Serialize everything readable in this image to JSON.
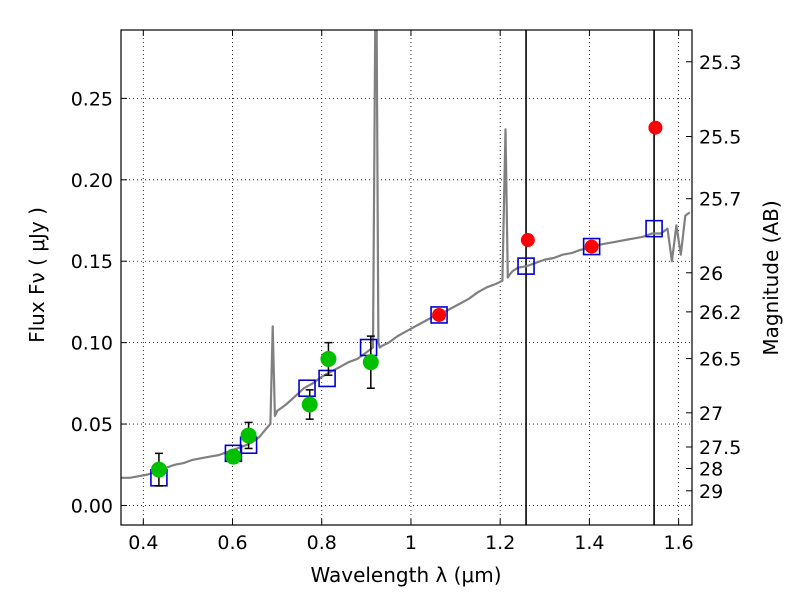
{
  "chart_data": {
    "type": "scatter",
    "xlabel": "Wavelength  λ (μm)",
    "ylabel": "Flux  Fν  ( μJy )",
    "ylabel_right": "Magnitude (AB)",
    "xlim": [
      0.35,
      1.63
    ],
    "ylim": [
      -0.012,
      0.292
    ],
    "grid": true,
    "x_ticks": [
      0.4,
      0.6,
      0.8,
      1.0,
      1.2,
      1.4,
      1.6
    ],
    "x_tick_labels": [
      "0.4",
      "0.6",
      "0.8",
      "1",
      "1.2",
      "1.4",
      "1.6"
    ],
    "y_ticks": [
      0.0,
      0.05,
      0.1,
      0.15,
      0.2,
      0.25
    ],
    "y_tick_labels": [
      "0.00",
      "0.05",
      "0.10",
      "0.15",
      "0.20",
      "0.25"
    ],
    "right_ticks": [
      {
        "label": "25.3",
        "flux": 0.2725
      },
      {
        "label": "25.5",
        "flux": 0.2266
      },
      {
        "label": "25.7",
        "flux": 0.1884
      },
      {
        "label": "26",
        "flux": 0.1429
      },
      {
        "label": "26.2",
        "flux": 0.1189
      },
      {
        "label": "26.5",
        "flux": 0.0902
      },
      {
        "label": "27",
        "flux": 0.0569
      },
      {
        "label": "27.5",
        "flux": 0.0359
      },
      {
        "label": "28",
        "flux": 0.0227
      },
      {
        "label": "29",
        "flux": 0.009
      }
    ],
    "vertical_lines": [
      1.258,
      1.545
    ],
    "series": [
      {
        "kind": "line",
        "color": "#808080",
        "x": [
          0.35,
          0.37,
          0.39,
          0.41,
          0.43,
          0.45,
          0.47,
          0.49,
          0.51,
          0.53,
          0.55,
          0.57,
          0.59,
          0.61,
          0.63,
          0.645,
          0.66,
          0.675,
          0.685,
          0.69,
          0.695,
          0.7,
          0.72,
          0.74,
          0.76,
          0.78,
          0.8,
          0.82,
          0.84,
          0.86,
          0.88,
          0.9,
          0.915,
          0.92,
          0.923,
          0.927,
          0.93,
          0.935,
          0.95,
          0.97,
          0.99,
          1.01,
          1.03,
          1.05,
          1.07,
          1.09,
          1.11,
          1.13,
          1.15,
          1.17,
          1.19,
          1.205,
          1.212,
          1.217,
          1.222,
          1.228,
          1.24,
          1.26,
          1.28,
          1.3,
          1.32,
          1.34,
          1.36,
          1.38,
          1.4,
          1.42,
          1.44,
          1.46,
          1.48,
          1.5,
          1.52,
          1.54,
          1.56,
          1.575,
          1.585,
          1.595,
          1.605,
          1.615,
          1.625
        ],
        "y": [
          0.017,
          0.017,
          0.018,
          0.019,
          0.021,
          0.023,
          0.025,
          0.026,
          0.028,
          0.029,
          0.03,
          0.031,
          0.033,
          0.035,
          0.037,
          0.039,
          0.042,
          0.047,
          0.05,
          0.11,
          0.055,
          0.058,
          0.062,
          0.067,
          0.072,
          0.075,
          0.079,
          0.082,
          0.085,
          0.088,
          0.09,
          0.094,
          0.097,
          0.3,
          0.3,
          0.1,
          0.097,
          0.098,
          0.1,
          0.104,
          0.107,
          0.11,
          0.113,
          0.116,
          0.118,
          0.121,
          0.124,
          0.127,
          0.131,
          0.134,
          0.136,
          0.138,
          0.231,
          0.14,
          0.142,
          0.144,
          0.146,
          0.147,
          0.149,
          0.151,
          0.152,
          0.154,
          0.155,
          0.157,
          0.158,
          0.16,
          0.161,
          0.162,
          0.163,
          0.164,
          0.165,
          0.167,
          0.167,
          0.17,
          0.15,
          0.172,
          0.154,
          0.178,
          0.18
        ]
      },
      {
        "kind": "errorbar",
        "color": "#00c000",
        "x": [
          0.435,
          0.602,
          0.636,
          0.773,
          0.815,
          0.91
        ],
        "y": [
          0.022,
          0.03,
          0.043,
          0.062,
          0.09,
          0.088
        ],
        "yerr": [
          0.01,
          0.004,
          0.008,
          0.009,
          0.01,
          0.016
        ]
      },
      {
        "kind": "points",
        "color": "#ff0000",
        "x": [
          1.063,
          1.262,
          1.405,
          1.548
        ],
        "y": [
          0.117,
          0.163,
          0.159,
          0.232
        ]
      },
      {
        "kind": "squares",
        "color": "#0000cc",
        "x": [
          0.435,
          0.602,
          0.636,
          0.767,
          0.812,
          0.905,
          1.063,
          1.258,
          1.405,
          1.545
        ],
        "y": [
          0.017,
          0.032,
          0.037,
          0.072,
          0.078,
          0.097,
          0.117,
          0.147,
          0.159,
          0.17
        ]
      }
    ]
  }
}
